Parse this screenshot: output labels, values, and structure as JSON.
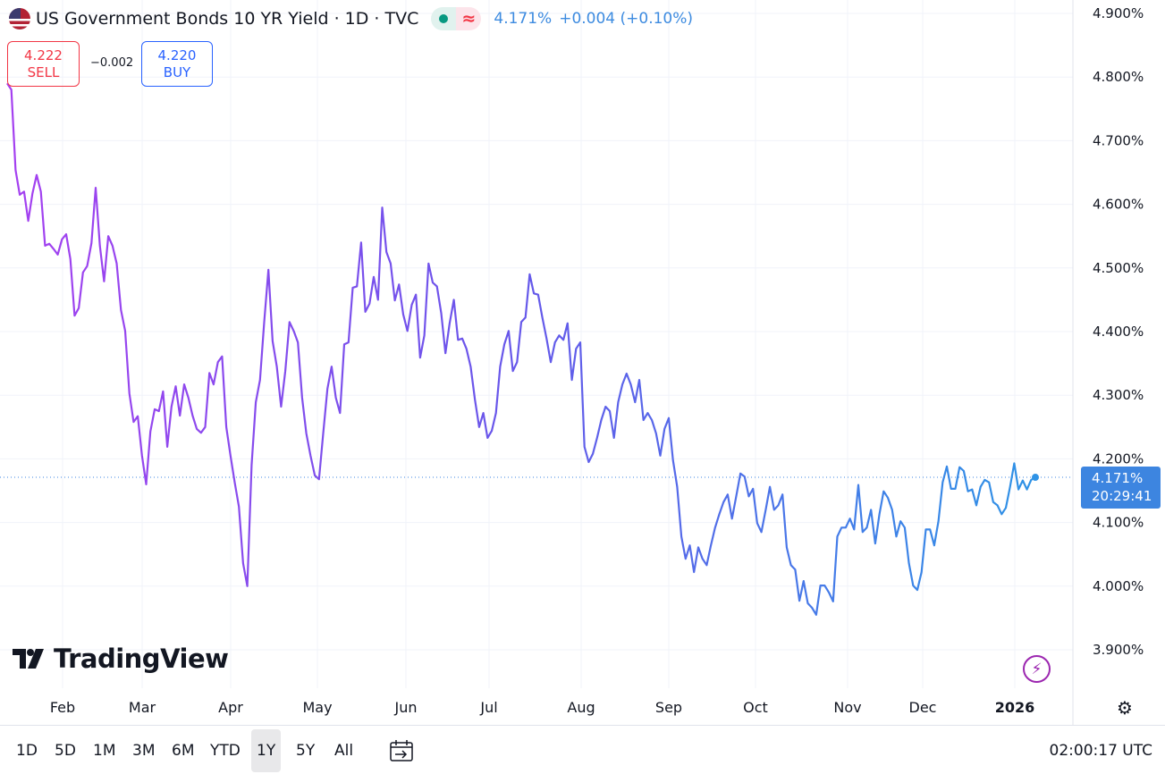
{
  "header": {
    "title": "US Government Bonds 10 YR Yield · 1D · TVC",
    "last": "4.171%",
    "change": "+0.004 (+0.10%)",
    "market_status_icon": "green-dot",
    "delayed_icon": "approx-wave"
  },
  "trade": {
    "sell_price": "4.222",
    "sell_label": "SELL",
    "spread": "−0.002",
    "buy_price": "4.220",
    "buy_label": "BUY"
  },
  "price_label": {
    "value": "4.171%",
    "countdown": "20:29:41"
  },
  "logo": "TradingView",
  "toolbar": {
    "ranges": [
      "1D",
      "5D",
      "1M",
      "3M",
      "6M",
      "YTD",
      "1Y",
      "5Y",
      "All"
    ],
    "active": "1Y",
    "clock": "02:00:17 UTC"
  },
  "colors": {
    "line_start": "#a540f0",
    "line_mid": "#6658ea",
    "line_end": "#2f93e6",
    "label_bg": "#3d85e0"
  },
  "chart_data": {
    "type": "line",
    "ylim": [
      3.9,
      4.9
    ],
    "y_ticks": [
      "4.900%",
      "4.800%",
      "4.700%",
      "4.600%",
      "4.500%",
      "4.400%",
      "4.300%",
      "4.200%",
      "4.100%",
      "4.000%",
      "3.900%"
    ],
    "x_ticks": [
      "Feb",
      "Mar",
      "Apr",
      "May",
      "Jun",
      "Jul",
      "Aug",
      "Sep",
      "Oct",
      "Nov",
      "Dec",
      "2026"
    ],
    "grid": true,
    "last_value": 4.171,
    "values": [
      4.79,
      4.78,
      4.654,
      4.615,
      4.62,
      4.574,
      4.617,
      4.646,
      4.62,
      4.535,
      4.538,
      4.53,
      4.521,
      4.545,
      4.553,
      4.514,
      4.425,
      4.437,
      4.493,
      4.503,
      4.539,
      4.626,
      4.535,
      4.479,
      4.55,
      4.535,
      4.507,
      4.434,
      4.401,
      4.303,
      4.258,
      4.267,
      4.205,
      4.16,
      4.243,
      4.278,
      4.275,
      4.306,
      4.219,
      4.282,
      4.314,
      4.268,
      4.317,
      4.296,
      4.268,
      4.247,
      4.241,
      4.25,
      4.335,
      4.317,
      4.352,
      4.361,
      4.25,
      4.205,
      4.163,
      4.125,
      4.036,
      4.0,
      4.19,
      4.289,
      4.324,
      4.415,
      4.497,
      4.385,
      4.345,
      4.282,
      4.338,
      4.415,
      4.401,
      4.383,
      4.296,
      4.24,
      4.205,
      4.174,
      4.168,
      4.24,
      4.31,
      4.345,
      4.296,
      4.272,
      4.38,
      4.383,
      4.469,
      4.471,
      4.54,
      4.431,
      4.444,
      4.486,
      4.45,
      4.595,
      4.525,
      4.507,
      4.449,
      4.474,
      4.427,
      4.401,
      4.442,
      4.458,
      4.359,
      4.394,
      4.507,
      4.477,
      4.471,
      4.429,
      4.366,
      4.413,
      4.45,
      4.387,
      4.389,
      4.373,
      4.345,
      4.293,
      4.25,
      4.272,
      4.233,
      4.244,
      4.272,
      4.345,
      4.38,
      4.401,
      4.338,
      4.352,
      4.415,
      4.422,
      4.49,
      4.46,
      4.458,
      4.422,
      4.389,
      4.352,
      4.383,
      4.394,
      4.387,
      4.413,
      4.324,
      4.373,
      4.383,
      4.219,
      4.195,
      4.208,
      4.233,
      4.261,
      4.282,
      4.275,
      4.233,
      4.289,
      4.317,
      4.334,
      4.317,
      4.289,
      4.324,
      4.261,
      4.272,
      4.261,
      4.24,
      4.205,
      4.247,
      4.264,
      4.198,
      4.156,
      4.078,
      4.043,
      4.064,
      4.022,
      4.061,
      4.043,
      4.033,
      4.064,
      4.092,
      4.113,
      4.132,
      4.144,
      4.106,
      4.141,
      4.177,
      4.172,
      4.141,
      4.153,
      4.099,
      4.085,
      4.12,
      4.156,
      4.12,
      4.127,
      4.144,
      4.061,
      4.033,
      4.026,
      3.977,
      4.008,
      3.973,
      3.966,
      3.955,
      4.001,
      4.001,
      3.99,
      3.976,
      4.078,
      4.092,
      4.092,
      4.106,
      4.089,
      4.159,
      4.085,
      4.092,
      4.12,
      4.067,
      4.113,
      4.149,
      4.139,
      4.12,
      4.078,
      4.102,
      4.092,
      4.036,
      4.001,
      3.994,
      4.022,
      4.089,
      4.089,
      4.064,
      4.102,
      4.163,
      4.188,
      4.153,
      4.153,
      4.187,
      4.181,
      4.149,
      4.152,
      4.127,
      4.156,
      4.167,
      4.163,
      4.132,
      4.127,
      4.113,
      4.123,
      4.156,
      4.193,
      4.152,
      4.166,
      4.152,
      4.167,
      4.171
    ]
  }
}
